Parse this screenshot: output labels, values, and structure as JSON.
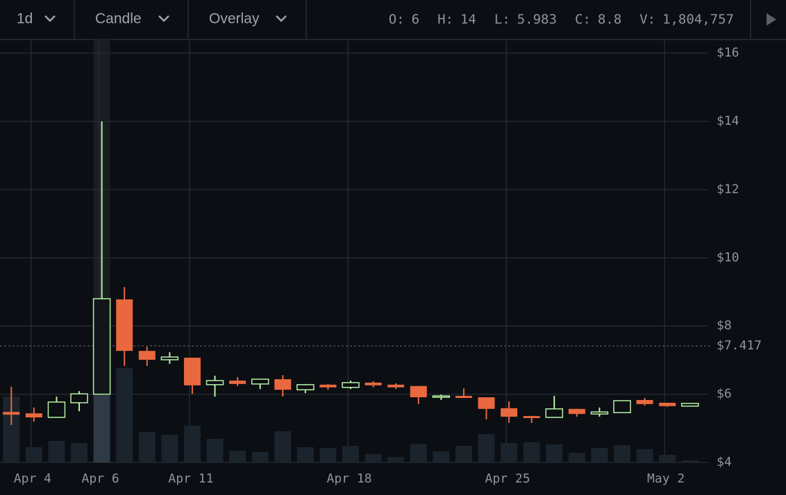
{
  "toolbar": {
    "interval": "1d",
    "chart_type": "Candle",
    "overlay": "Overlay",
    "readout": [
      {
        "label": "O:",
        "value": "6"
      },
      {
        "label": "H:",
        "value": "14"
      },
      {
        "label": "L:",
        "value": "5.983"
      },
      {
        "label": "C:",
        "value": "8.8"
      },
      {
        "label": "V:",
        "value": "1,804,757"
      }
    ]
  },
  "chart_data": {
    "type": "candlestick",
    "categories": [
      null,
      "Apr 4",
      null,
      null,
      "Apr 6",
      null,
      null,
      null,
      "Apr 11",
      null,
      null,
      null,
      null,
      null,
      null,
      "Apr 18",
      null,
      null,
      null,
      null,
      null,
      null,
      "Apr 25",
      null,
      null,
      null,
      null,
      null,
      null,
      "May 2",
      null
    ],
    "open": [
      5.48,
      5.44,
      5.32,
      5.75,
      6,
      8.78,
      7.27,
      7.01,
      7.07,
      6.28,
      6.4,
      6.3,
      6.44,
      6.13,
      6.28,
      6.2,
      6.34,
      6.28,
      6.24,
      5.91,
      5.95,
      5.91,
      5.59,
      5.36,
      5.32,
      5.57,
      5.42,
      5.46,
      5.83,
      5.75,
      5.65
    ],
    "high": [
      6.22,
      5.61,
      5.93,
      6.09,
      14,
      9.14,
      7.39,
      7.23,
      7.07,
      6.54,
      6.5,
      6.44,
      6.56,
      6.3,
      6.3,
      6.4,
      6.38,
      6.32,
      6.24,
      5.99,
      6.17,
      5.91,
      5.79,
      5.36,
      5.95,
      5.57,
      5.61,
      5.81,
      5.89,
      5.75,
      5.73
    ],
    "low": [
      5.1,
      5.2,
      5.32,
      5.5,
      5.983,
      6.83,
      6.83,
      6.89,
      6.01,
      5.93,
      6.24,
      6.15,
      5.93,
      6.03,
      6.13,
      6.15,
      6.2,
      6.15,
      5.71,
      5.83,
      5.89,
      5.26,
      5.16,
      5.16,
      5.32,
      5.34,
      5.34,
      5.46,
      5.67,
      5.63,
      5.65
    ],
    "close": [
      5.4,
      5.32,
      5.77,
      6.01,
      8.8,
      7.27,
      7.01,
      7.09,
      6.26,
      6.4,
      6.3,
      6.44,
      6.13,
      6.28,
      6.2,
      6.34,
      6.26,
      6.2,
      5.91,
      5.95,
      5.89,
      5.57,
      5.34,
      5.3,
      5.57,
      5.42,
      5.48,
      5.81,
      5.71,
      5.65,
      5.73
    ],
    "volume": [
      1770000,
      409000,
      577000,
      521000,
      1804757,
      2530000,
      819000,
      744000,
      986000,
      633000,
      316000,
      279000,
      837000,
      409000,
      391000,
      447000,
      223000,
      149000,
      502000,
      298000,
      447000,
      763000,
      521000,
      540000,
      484000,
      260000,
      391000,
      465000,
      353000,
      205000,
      56000
    ],
    "up_color": "#b8f2a6",
    "down_color": "#e9683f",
    "volume_color": "#1b232d",
    "highlight_volume_color": "#2e3a45",
    "highlight_index": 4,
    "ylim": [
      4,
      16.4
    ],
    "yticks": [
      {
        "value": 4,
        "label": "$4"
      },
      {
        "value": 6,
        "label": "$6"
      },
      {
        "value": 8,
        "label": "$8"
      },
      {
        "value": 10,
        "label": "$10"
      },
      {
        "value": 12,
        "label": "$12"
      },
      {
        "value": 14,
        "label": "$14"
      },
      {
        "value": 16,
        "label": "$16"
      }
    ],
    "price_line": {
      "value": 7.417,
      "label": "$7.417"
    },
    "grid": true
  }
}
